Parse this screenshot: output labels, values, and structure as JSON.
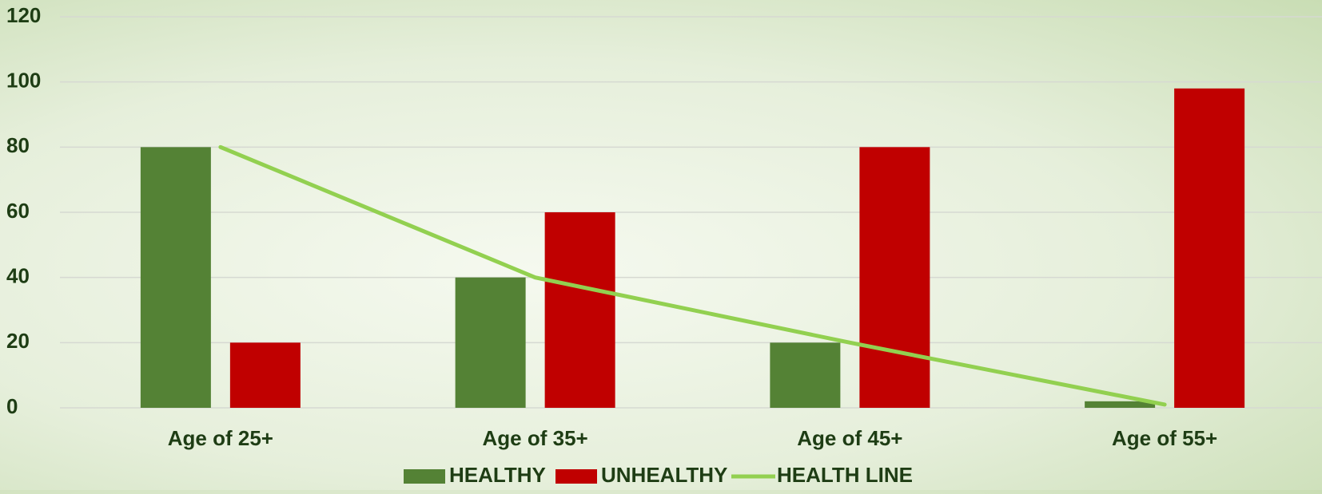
{
  "chart_data": {
    "type": "bar-line",
    "categories": [
      "Age of 25+",
      "Age of 35+",
      "Age of 45+",
      "Age of 55+"
    ],
    "series": [
      {
        "name": "HEALTHY",
        "color": "#548235",
        "values": [
          80,
          40,
          20,
          2
        ],
        "kind": "bar"
      },
      {
        "name": "UNHEALTHY",
        "color": "#c00000",
        "values": [
          20,
          60,
          80,
          98
        ],
        "kind": "bar"
      },
      {
        "name": "HEALTH LINE",
        "color": "#92d050",
        "values": [
          80,
          40,
          20,
          1
        ],
        "kind": "line"
      }
    ],
    "ylim": [
      0,
      120
    ],
    "yticks": [
      0,
      20,
      40,
      60,
      80,
      100,
      120
    ],
    "grid": true,
    "legend": "bottom"
  }
}
